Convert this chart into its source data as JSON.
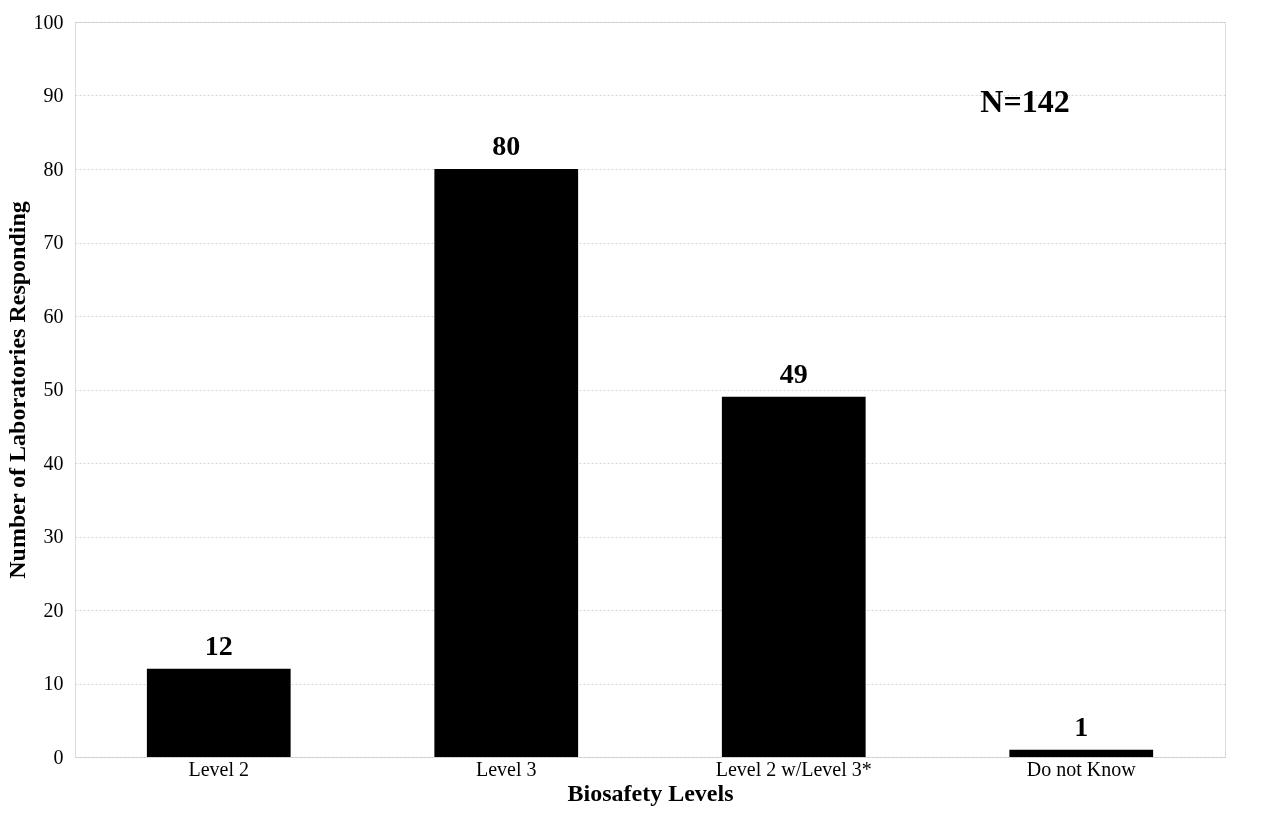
{
  "chart_data": {
    "type": "bar",
    "xlabel": "Biosafety Levels",
    "ylabel": "Number of Laboratories Responding",
    "categories": [
      "Level 2",
      "Level 3",
      "Level 2 w/Level 3*",
      "Do not Know"
    ],
    "values": [
      12,
      80,
      49,
      1
    ],
    "color": "#000000",
    "ylim": [
      0,
      100
    ],
    "yticks": [
      0,
      10,
      20,
      30,
      40,
      50,
      60,
      70,
      80,
      90,
      100
    ],
    "grid": "y",
    "data_labels": true,
    "annotations": [
      "N=142"
    ]
  }
}
